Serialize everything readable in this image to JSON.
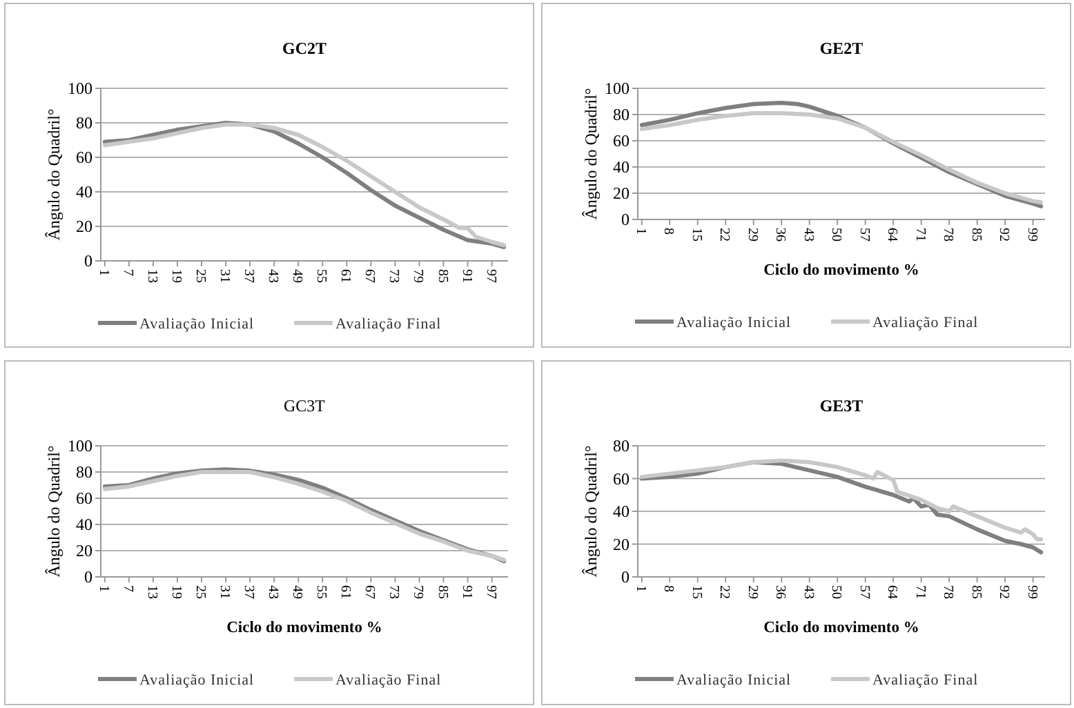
{
  "chart_data": [
    {
      "type": "line",
      "title": "GC2T",
      "ylabel": "Ângulo do Quadril°",
      "xlim": [
        0,
        101
      ],
      "xticks": [
        1,
        7,
        13,
        19,
        25,
        31,
        37,
        43,
        49,
        55,
        61,
        67,
        73,
        79,
        85,
        91,
        97
      ],
      "ylim": [
        0,
        100
      ],
      "yticks": [
        0,
        20,
        40,
        60,
        80,
        100
      ],
      "grid": "y",
      "legend": "bottom",
      "series": [
        {
          "name": "Avaliação Inicial",
          "color": "#7f7f7f",
          "x": [
            1,
            7,
            13,
            19,
            25,
            31,
            37,
            43,
            49,
            55,
            61,
            67,
            73,
            79,
            85,
            91,
            97,
            100
          ],
          "values": [
            69,
            70,
            73,
            76,
            78,
            80,
            79,
            75,
            68,
            60,
            51,
            41,
            32,
            25,
            18,
            12,
            10,
            8
          ]
        },
        {
          "name": "Avaliação Final",
          "color": "#c8c8c8",
          "x": [
            1,
            7,
            13,
            19,
            25,
            31,
            37,
            43,
            49,
            55,
            61,
            67,
            73,
            79,
            85,
            89,
            91,
            93,
            97,
            100
          ],
          "values": [
            67,
            69,
            71,
            74,
            77,
            79,
            79,
            77,
            73,
            66,
            58,
            49,
            40,
            31,
            24,
            19,
            19,
            14,
            11,
            9
          ]
        }
      ]
    },
    {
      "type": "line",
      "title": "GE2T",
      "xlabel": "Ciclo do movimento %",
      "ylabel": "Ângulo do Quadril°",
      "xlim": [
        0,
        102
      ],
      "xticks": [
        1,
        8,
        15,
        22,
        29,
        36,
        43,
        50,
        57,
        64,
        71,
        78,
        85,
        92,
        99
      ],
      "ylim": [
        0,
        100
      ],
      "yticks": [
        0,
        20,
        40,
        60,
        80,
        100
      ],
      "grid": "y",
      "legend": "bottom",
      "series": [
        {
          "name": "Avaliação Inicial",
          "color": "#7f7f7f",
          "x": [
            1,
            8,
            15,
            22,
            29,
            36,
            40,
            43,
            50,
            57,
            64,
            71,
            78,
            85,
            92,
            99,
            101
          ],
          "values": [
            72,
            76,
            81,
            85,
            88,
            89,
            88,
            86,
            79,
            70,
            58,
            47,
            36,
            27,
            18,
            12,
            10
          ]
        },
        {
          "name": "Avaliação Final",
          "color": "#c8c8c8",
          "x": [
            1,
            8,
            15,
            22,
            29,
            36,
            43,
            50,
            57,
            64,
            71,
            78,
            85,
            92,
            99,
            101
          ],
          "values": [
            69,
            72,
            76,
            79,
            81,
            81,
            80,
            77,
            70,
            59,
            49,
            38,
            28,
            20,
            14,
            13
          ]
        }
      ]
    },
    {
      "type": "line",
      "title": "GC3T",
      "xlabel": "Ciclo do movimento %",
      "ylabel": "Ângulo do Quadril°",
      "xlim": [
        0,
        101
      ],
      "xticks": [
        1,
        7,
        13,
        19,
        25,
        31,
        37,
        43,
        49,
        55,
        61,
        67,
        73,
        79,
        85,
        91,
        97
      ],
      "ylim": [
        0,
        100
      ],
      "yticks": [
        0,
        20,
        40,
        60,
        80,
        100
      ],
      "grid": "y",
      "legend": "bottom",
      "series": [
        {
          "name": "Avaliação Inicial",
          "color": "#7f7f7f",
          "x": [
            1,
            7,
            13,
            19,
            25,
            31,
            37,
            43,
            49,
            55,
            61,
            67,
            73,
            79,
            85,
            91,
            97,
            100
          ],
          "values": [
            69,
            70,
            75,
            79,
            81,
            82,
            81,
            78,
            74,
            68,
            60,
            51,
            43,
            35,
            28,
            21,
            16,
            12
          ]
        },
        {
          "name": "Avaliação Final",
          "color": "#c8c8c8",
          "x": [
            1,
            7,
            13,
            19,
            25,
            31,
            37,
            43,
            49,
            55,
            61,
            67,
            73,
            79,
            85,
            91,
            97,
            100
          ],
          "values": [
            67,
            69,
            73,
            77,
            80,
            80,
            80,
            76,
            71,
            65,
            58,
            49,
            41,
            33,
            27,
            20,
            16,
            13
          ]
        }
      ]
    },
    {
      "type": "line",
      "title": "GE3T",
      "xlabel": "Ciclo do movimento %",
      "ylabel": "Ângulo do Quadril°",
      "xlim": [
        0,
        102
      ],
      "xticks": [
        1,
        8,
        15,
        22,
        29,
        36,
        43,
        50,
        57,
        64,
        71,
        78,
        85,
        92,
        99
      ],
      "ylim": [
        0,
        80
      ],
      "yticks": [
        0,
        20,
        40,
        60,
        80
      ],
      "grid": "y",
      "legend": "bottom",
      "series": [
        {
          "name": "Avaliação Inicial",
          "color": "#7f7f7f",
          "x": [
            1,
            8,
            15,
            22,
            29,
            36,
            43,
            50,
            57,
            64,
            68,
            69,
            71,
            73,
            75,
            78,
            85,
            92,
            96,
            99,
            101
          ],
          "values": [
            60,
            61,
            63,
            67,
            70,
            69,
            65,
            61,
            55,
            50,
            46,
            48,
            43,
            44,
            38,
            37,
            29,
            22,
            20,
            18,
            15
          ]
        },
        {
          "name": "Avaliação Final",
          "color": "#c8c8c8",
          "x": [
            1,
            8,
            15,
            22,
            29,
            36,
            43,
            50,
            57,
            59,
            60,
            64,
            65,
            71,
            75,
            78,
            79,
            85,
            92,
            96,
            97,
            99,
            100,
            101
          ],
          "values": [
            61,
            63,
            65,
            67,
            70,
            71,
            70,
            67,
            62,
            60,
            64,
            59,
            52,
            47,
            42,
            40,
            43,
            37,
            30,
            27,
            29,
            26,
            23,
            23
          ]
        }
      ]
    }
  ]
}
